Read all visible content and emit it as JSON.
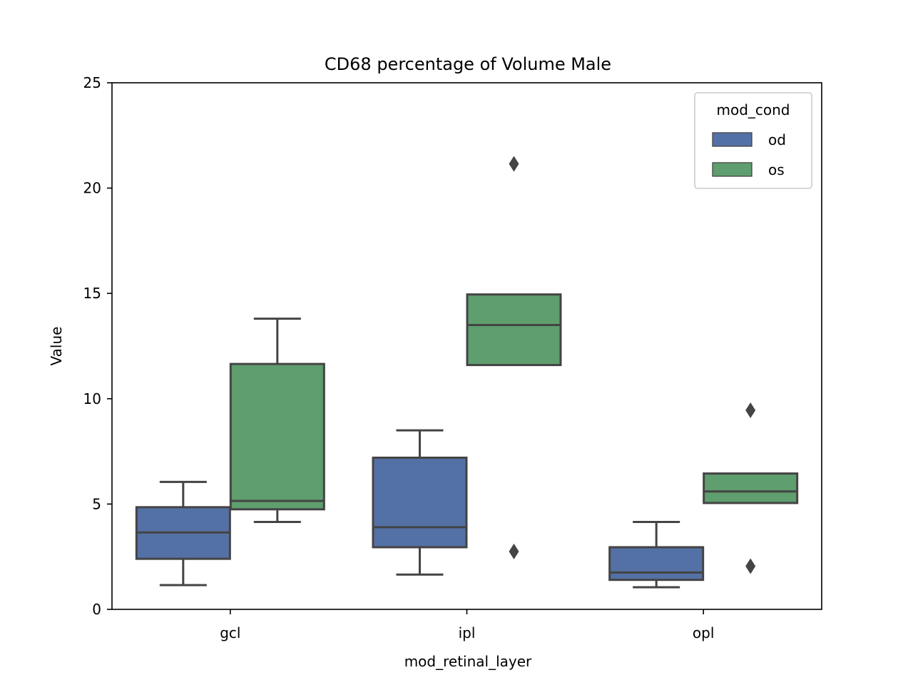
{
  "chart_data": {
    "type": "box",
    "title": "CD68 percentage of Volume Male",
    "xlabel": "mod_retinal_layer",
    "ylabel": "Value",
    "ylim": [
      0,
      25
    ],
    "yticks": [
      0,
      5,
      10,
      15,
      20,
      25
    ],
    "categories": [
      "gcl",
      "ipl",
      "opl"
    ],
    "grid": false,
    "legend": {
      "title": "mod_cond",
      "placement": "top-right"
    },
    "series": [
      {
        "name": "od",
        "color": "#5471a6",
        "boxes": [
          {
            "category": "gcl",
            "whislo": 1.15,
            "q1": 2.4,
            "median": 3.65,
            "q3": 4.85,
            "whishi": 6.05,
            "fliers": []
          },
          {
            "category": "ipl",
            "whislo": 1.65,
            "q1": 2.95,
            "median": 3.9,
            "q3": 7.2,
            "whishi": 8.5,
            "fliers": []
          },
          {
            "category": "opl",
            "whislo": 1.05,
            "q1": 1.4,
            "median": 1.75,
            "q3": 2.95,
            "whishi": 4.15,
            "fliers": []
          }
        ]
      },
      {
        "name": "os",
        "color": "#5f9e6e",
        "boxes": [
          {
            "category": "gcl",
            "whislo": 4.15,
            "q1": 4.75,
            "median": 5.15,
            "q3": 11.65,
            "whishi": 13.8,
            "fliers": []
          },
          {
            "category": "ipl",
            "whislo": 11.6,
            "q1": 11.6,
            "median": 13.5,
            "q3": 14.95,
            "whishi": 14.95,
            "fliers": [
              2.75,
              21.15
            ]
          },
          {
            "category": "opl",
            "whislo": 5.05,
            "q1": 5.05,
            "median": 5.6,
            "q3": 6.45,
            "whishi": 6.45,
            "fliers": [
              2.05,
              9.45
            ]
          }
        ]
      }
    ]
  }
}
